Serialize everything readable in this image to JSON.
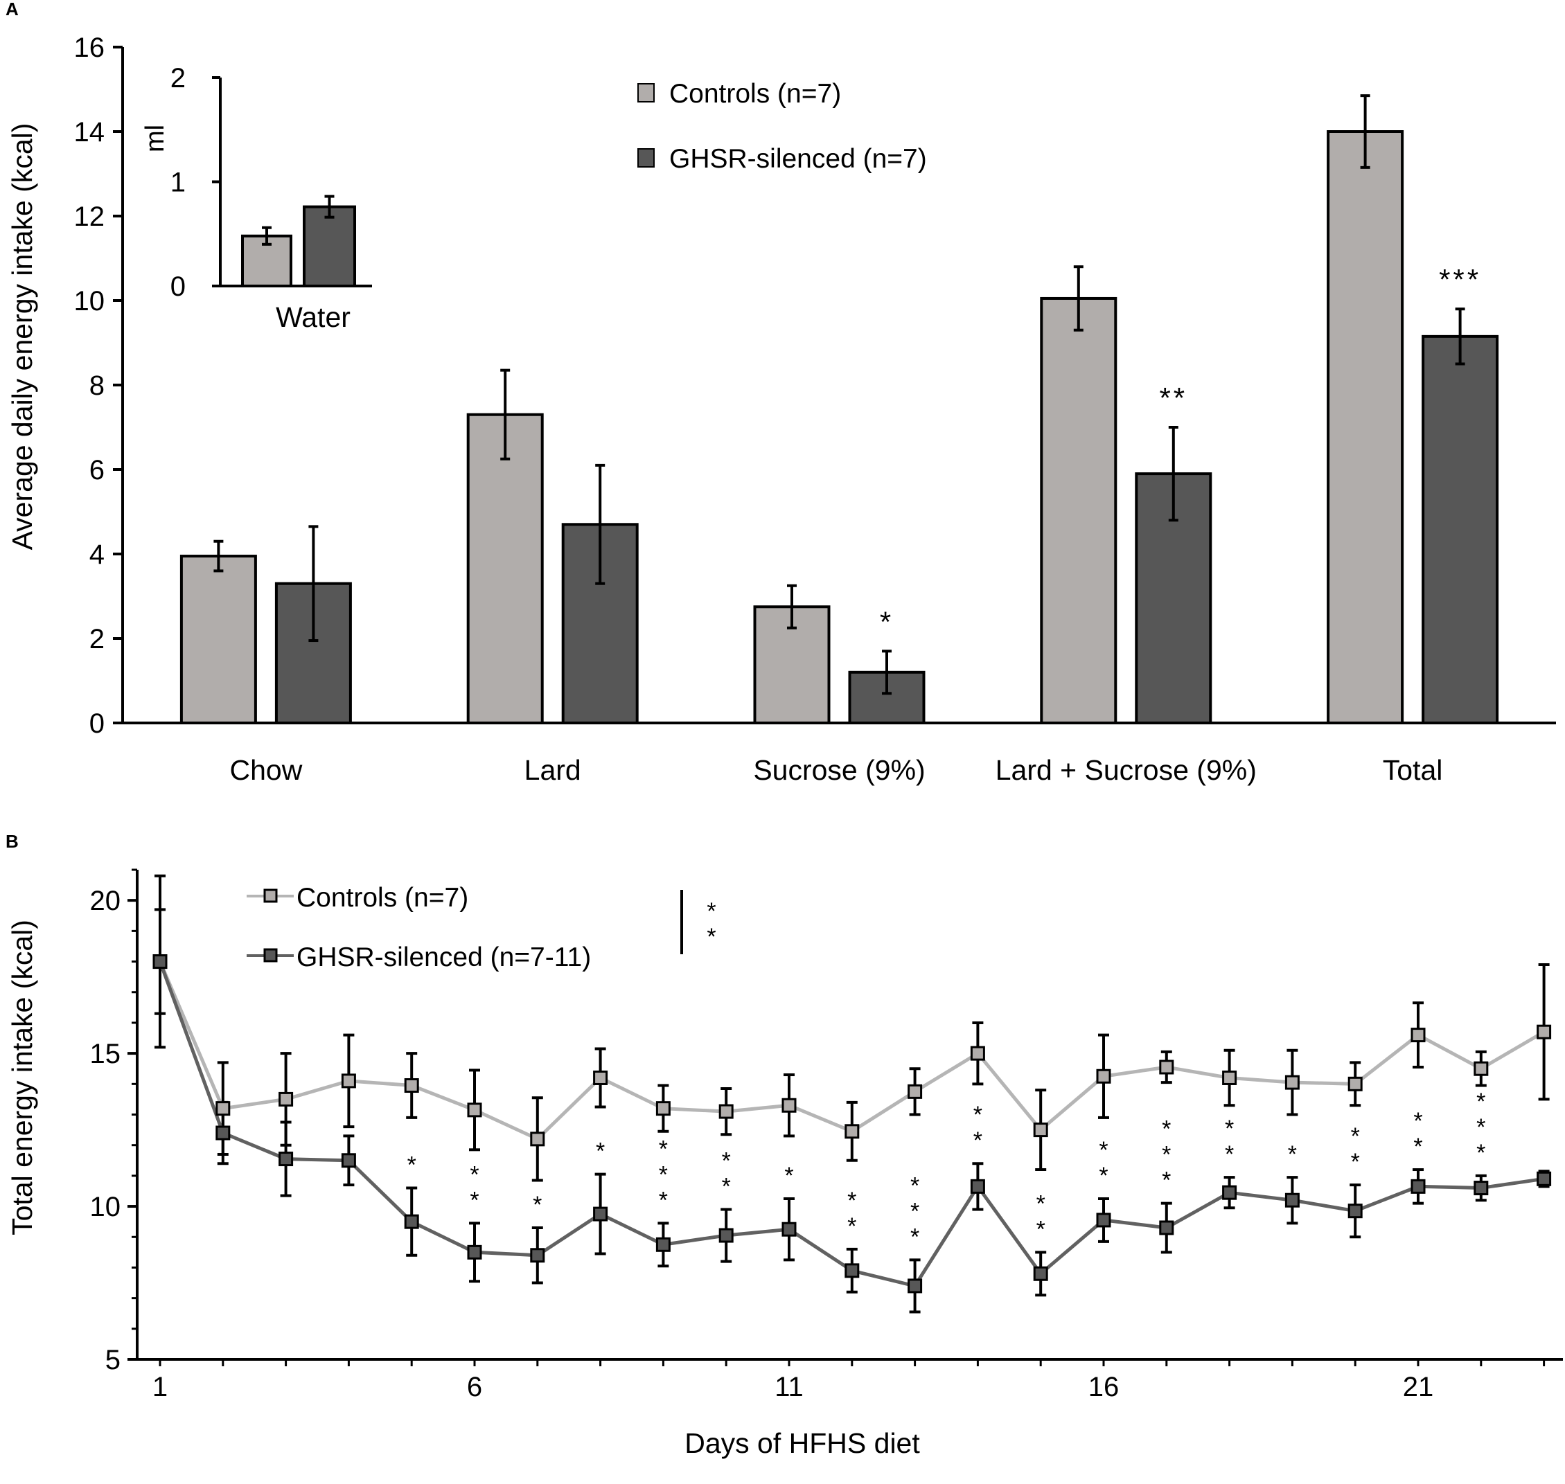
{
  "colors": {
    "control": "#b1adab",
    "ghsr": "#575757",
    "control_line": "#b5b5b5",
    "ghsr_line": "#616161",
    "axis": "#000000"
  },
  "panel_labels": {
    "a": "A",
    "b": "B"
  },
  "chart_data": [
    {
      "type": "bar",
      "panel": "A",
      "ylabel": "Average daily energy intake (kcal)",
      "ylim": [
        0,
        16
      ],
      "yticks": [
        0,
        2,
        4,
        6,
        8,
        10,
        12,
        14,
        16
      ],
      "categories": [
        "Chow",
        "Lard",
        "Sucrose (9%)",
        "Lard + Sucrose (9%)",
        "Total"
      ],
      "series": [
        {
          "name": "Controls (n=7)",
          "values": [
            3.95,
            7.3,
            2.75,
            10.05,
            14.0
          ],
          "errors": [
            0.35,
            1.05,
            0.5,
            0.75,
            0.85
          ]
        },
        {
          "name": "GHSR-silenced (n=7)",
          "values": [
            3.3,
            4.7,
            1.2,
            5.9,
            9.15
          ],
          "errors": [
            1.35,
            1.4,
            0.5,
            1.1,
            0.65
          ]
        }
      ],
      "significance": [
        "",
        "",
        "*",
        "**",
        "***"
      ],
      "legend_position": "top-center"
    },
    {
      "type": "bar",
      "panel": "A-inset",
      "ylabel": "ml",
      "ylim": [
        0,
        2
      ],
      "yticks": [
        0,
        1,
        2
      ],
      "categories": [
        "Water"
      ],
      "series": [
        {
          "name": "Controls (n=7)",
          "values": [
            0.48
          ],
          "errors": [
            0.08
          ]
        },
        {
          "name": "GHSR-silenced (n=7)",
          "values": [
            0.76
          ],
          "errors": [
            0.1
          ]
        }
      ]
    },
    {
      "type": "line",
      "panel": "B",
      "xlabel": "Days of HFHS diet",
      "ylabel": "Total energy intake (kcal)",
      "xlim": [
        0.5,
        23.5
      ],
      "ylim": [
        5,
        21
      ],
      "xticks": [
        1,
        6,
        11,
        16,
        21
      ],
      "yticks": [
        5,
        10,
        15,
        20
      ],
      "x": [
        1,
        2,
        3,
        4,
        5,
        6,
        7,
        8,
        9,
        10,
        11,
        12,
        13,
        14,
        15,
        16,
        17,
        18,
        19,
        20,
        21,
        22,
        23
      ],
      "series": [
        {
          "name": "Controls (n=7)",
          "values": [
            18.0,
            13.2,
            13.5,
            14.1,
            13.95,
            13.15,
            12.2,
            14.2,
            13.2,
            13.1,
            13.3,
            12.45,
            13.75,
            15.0,
            12.5,
            14.25,
            14.55,
            14.2,
            14.05,
            14.0,
            15.6,
            14.5,
            15.7
          ],
          "errors": [
            2.8,
            1.5,
            1.5,
            1.5,
            1.05,
            1.3,
            1.35,
            0.95,
            0.75,
            0.75,
            1.0,
            0.95,
            0.75,
            1.0,
            1.3,
            1.35,
            0.5,
            0.9,
            1.05,
            0.7,
            1.05,
            0.55,
            2.2
          ]
        },
        {
          "name": "GHSR-silenced (n=7-11)",
          "values": [
            18.0,
            12.4,
            11.55,
            11.5,
            9.5,
            8.5,
            8.4,
            9.75,
            8.75,
            9.05,
            9.25,
            7.9,
            7.4,
            10.65,
            7.8,
            9.55,
            9.3,
            10.45,
            10.2,
            9.85,
            10.65,
            10.6,
            10.9
          ],
          "errors": [
            1.7,
            1.0,
            1.2,
            0.8,
            1.1,
            0.95,
            0.9,
            1.3,
            0.7,
            0.85,
            1.0,
            0.7,
            0.85,
            0.75,
            0.7,
            0.7,
            0.8,
            0.5,
            0.75,
            0.85,
            0.55,
            0.4,
            0.25
          ]
        }
      ],
      "significance": [
        "",
        "",
        "",
        "",
        "*",
        "**",
        "*",
        "*",
        "***",
        "**",
        "*",
        "**",
        "***",
        "**",
        "**",
        "**",
        "***",
        "**",
        "*",
        "**",
        "**",
        "***",
        ""
      ],
      "group_significance": "**",
      "legend_position": "top-left"
    }
  ]
}
